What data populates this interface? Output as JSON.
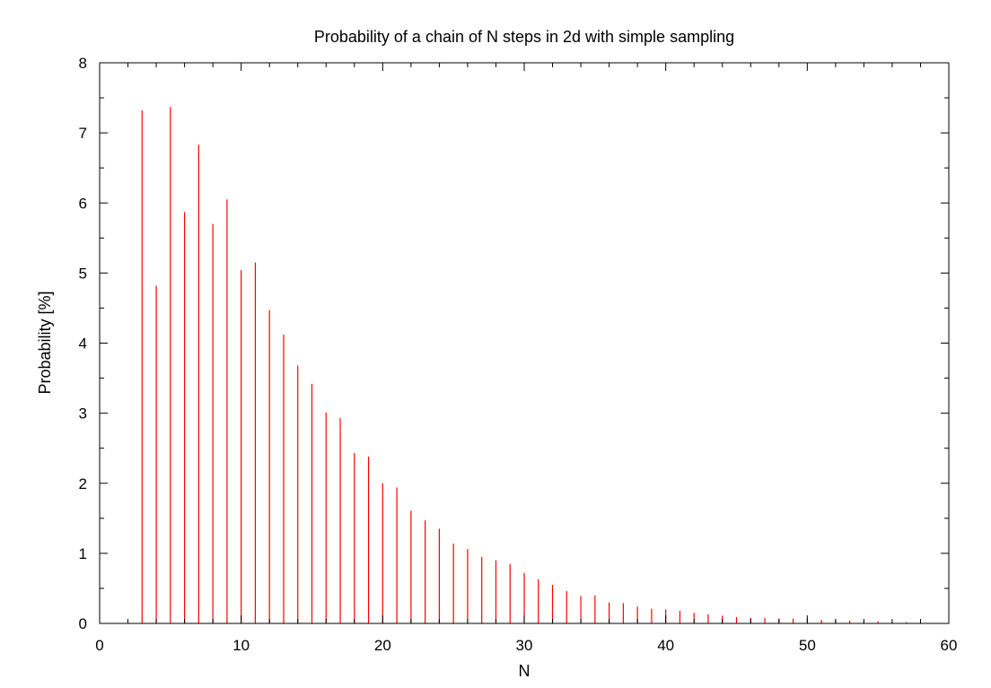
{
  "chart_data": {
    "type": "bar",
    "title": "Probability of a chain of N steps in 2d with simple sampling",
    "xlabel": "N",
    "ylabel": "Probability [%]",
    "xlim": [
      0,
      60
    ],
    "ylim": [
      0,
      8
    ],
    "xticks": [
      "0",
      "10",
      "20",
      "30",
      "40",
      "50",
      "60"
    ],
    "yticks": [
      "0",
      "1",
      "2",
      "3",
      "4",
      "5",
      "6",
      "7",
      "8"
    ],
    "grid": false,
    "legend": "none",
    "bar_color": "#ff0000",
    "series": [
      {
        "x": [
          3,
          4,
          5,
          6,
          7,
          8,
          9,
          10,
          11,
          12,
          13,
          14,
          15,
          16,
          17,
          18,
          19,
          20,
          21,
          22,
          23,
          24,
          25,
          26,
          27,
          28,
          29,
          30,
          31,
          32,
          33,
          34,
          35,
          36,
          37,
          38,
          39,
          40,
          41,
          42,
          43,
          44,
          45,
          46,
          47,
          48,
          49,
          50,
          51,
          52,
          53,
          54,
          55,
          56,
          57,
          58
        ],
        "values": [
          7.32,
          4.82,
          7.37,
          5.87,
          6.83,
          5.7,
          6.05,
          5.04,
          5.15,
          4.47,
          4.12,
          3.68,
          3.42,
          3.01,
          2.93,
          2.43,
          2.38,
          2.0,
          1.94,
          1.61,
          1.47,
          1.35,
          1.14,
          1.06,
          0.95,
          0.9,
          0.85,
          0.72,
          0.63,
          0.55,
          0.46,
          0.39,
          0.4,
          0.3,
          0.29,
          0.24,
          0.21,
          0.2,
          0.18,
          0.15,
          0.13,
          0.11,
          0.09,
          0.08,
          0.08,
          0.07,
          0.07,
          0.07,
          0.05,
          0.05,
          0.04,
          0.03,
          0.03,
          0.02,
          0.02,
          0.01
        ]
      }
    ]
  }
}
